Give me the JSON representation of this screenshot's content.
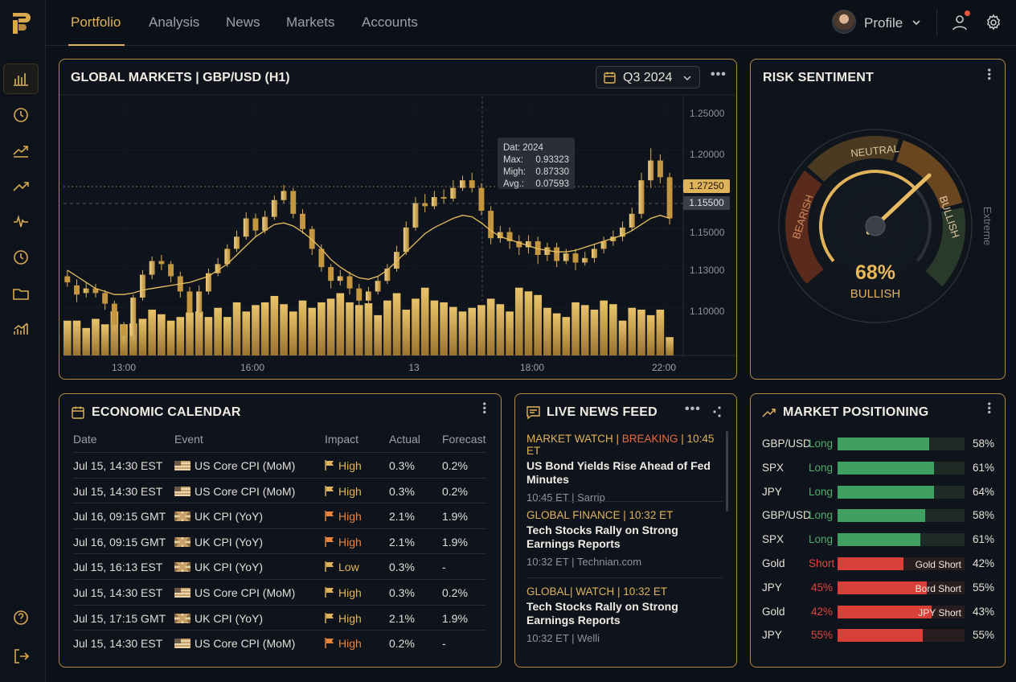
{
  "nav": {
    "tabs": [
      "Portfolio",
      "Analysis",
      "News",
      "Markets",
      "Accounts"
    ],
    "profile_label": "Profile"
  },
  "chart": {
    "title": "GLOBAL MARKETS | GBP/USD (H1)",
    "period": "Q3 2024",
    "tooltip": {
      "date": "Dat: 2024",
      "rows": [
        [
          "Max:",
          "0.93323"
        ],
        [
          "Migh:",
          "0.87330"
        ],
        [
          "Avg.:",
          "0.07593"
        ]
      ]
    },
    "price_tags": [
      "1.27250",
      "1.15500"
    ],
    "colors": {
      "gold": "#e0b35a",
      "bg": "#0f141c"
    }
  },
  "chart_data": {
    "type": "candlestick",
    "x_tick_labels": [
      "13:00",
      "16:00",
      "13",
      "18:00",
      "22:00"
    ],
    "y_tick_labels": [
      "1.25000",
      "1.20000",
      "1.15000",
      "1.13000",
      "1.10000"
    ],
    "ylim": [
      1.09,
      1.26
    ],
    "candles": [
      [
        1.142,
        1.138,
        1.146,
        1.135
      ],
      [
        1.136,
        1.13,
        1.14,
        1.125
      ],
      [
        1.131,
        1.134,
        1.138,
        1.128
      ],
      [
        1.134,
        1.131,
        1.137,
        1.128
      ],
      [
        1.131,
        1.124,
        1.133,
        1.12
      ],
      [
        1.124,
        1.11,
        1.126,
        1.106
      ],
      [
        1.11,
        1.103,
        1.112,
        1.098
      ],
      [
        1.103,
        1.128,
        1.13,
        1.1
      ],
      [
        1.128,
        1.143,
        1.146,
        1.126
      ],
      [
        1.143,
        1.152,
        1.155,
        1.14
      ],
      [
        1.152,
        1.15,
        1.156,
        1.146
      ],
      [
        1.15,
        1.142,
        1.152,
        1.138
      ],
      [
        1.142,
        1.132,
        1.145,
        1.128
      ],
      [
        1.132,
        1.118,
        1.135,
        1.115
      ],
      [
        1.118,
        1.132,
        1.136,
        1.116
      ],
      [
        1.132,
        1.144,
        1.147,
        1.13
      ],
      [
        1.144,
        1.15,
        1.154,
        1.142
      ],
      [
        1.15,
        1.16,
        1.163,
        1.148
      ],
      [
        1.16,
        1.168,
        1.172,
        1.158
      ],
      [
        1.168,
        1.18,
        1.184,
        1.166
      ],
      [
        1.18,
        1.172,
        1.183,
        1.168
      ],
      [
        1.172,
        1.181,
        1.185,
        1.17
      ],
      [
        1.181,
        1.192,
        1.195,
        1.179
      ],
      [
        1.192,
        1.198,
        1.202,
        1.19
      ],
      [
        1.198,
        1.183,
        1.2,
        1.18
      ],
      [
        1.183,
        1.173,
        1.186,
        1.17
      ],
      [
        1.173,
        1.16,
        1.175,
        1.156
      ],
      [
        1.16,
        1.148,
        1.163,
        1.145
      ],
      [
        1.148,
        1.139,
        1.15,
        1.134
      ],
      [
        1.139,
        1.142,
        1.146,
        1.136
      ],
      [
        1.142,
        1.134,
        1.145,
        1.13
      ],
      [
        1.134,
        1.126,
        1.137,
        1.12
      ],
      [
        1.126,
        1.132,
        1.135,
        1.123
      ],
      [
        1.132,
        1.139,
        1.142,
        1.13
      ],
      [
        1.139,
        1.147,
        1.15,
        1.137
      ],
      [
        1.147,
        1.158,
        1.162,
        1.145
      ],
      [
        1.158,
        1.174,
        1.178,
        1.156
      ],
      [
        1.174,
        1.19,
        1.194,
        1.172
      ],
      [
        1.19,
        1.188,
        1.196,
        1.184
      ],
      [
        1.188,
        1.194,
        1.198,
        1.186
      ],
      [
        1.194,
        1.193,
        1.199,
        1.19
      ],
      [
        1.193,
        1.2,
        1.205,
        1.191
      ],
      [
        1.2,
        1.205,
        1.208,
        1.198
      ],
      [
        1.205,
        1.2,
        1.21,
        1.197
      ],
      [
        1.2,
        1.185,
        1.203,
        1.182
      ],
      [
        1.185,
        1.167,
        1.188,
        1.163
      ],
      [
        1.167,
        1.171,
        1.175,
        1.164
      ],
      [
        1.171,
        1.165,
        1.174,
        1.16
      ],
      [
        1.165,
        1.161,
        1.169,
        1.156
      ],
      [
        1.161,
        1.165,
        1.169,
        1.157
      ],
      [
        1.165,
        1.156,
        1.168,
        1.15
      ],
      [
        1.156,
        1.161,
        1.164,
        1.152
      ],
      [
        1.161,
        1.152,
        1.164,
        1.148
      ],
      [
        1.152,
        1.157,
        1.16,
        1.15
      ],
      [
        1.157,
        1.151,
        1.16,
        1.146
      ],
      [
        1.151,
        1.154,
        1.158,
        1.149
      ],
      [
        1.154,
        1.16,
        1.163,
        1.151
      ],
      [
        1.16,
        1.165,
        1.168,
        1.157
      ],
      [
        1.165,
        1.168,
        1.172,
        1.162
      ],
      [
        1.168,
        1.174,
        1.178,
        1.165
      ],
      [
        1.174,
        1.183,
        1.187,
        1.172
      ],
      [
        1.183,
        1.205,
        1.21,
        1.18
      ],
      [
        1.205,
        1.218,
        1.226,
        1.2
      ],
      [
        1.218,
        1.207,
        1.222,
        1.203
      ],
      [
        1.207,
        1.18,
        1.21,
        1.176
      ]
    ],
    "volume": [
      0.38,
      0.38,
      0.3,
      0.4,
      0.34,
      0.48,
      0.34,
      0.35,
      0.4,
      0.5,
      0.45,
      0.38,
      0.42,
      0.47,
      0.48,
      0.42,
      0.52,
      0.42,
      0.58,
      0.48,
      0.55,
      0.58,
      0.65,
      0.56,
      0.48,
      0.6,
      0.52,
      0.58,
      0.62,
      0.68,
      0.58,
      0.55,
      0.57,
      0.44,
      0.6,
      0.68,
      0.5,
      0.62,
      0.74,
      0.6,
      0.58,
      0.53,
      0.48,
      0.52,
      0.55,
      0.62,
      0.56,
      0.48,
      0.74,
      0.7,
      0.66,
      0.52,
      0.46,
      0.42,
      0.58,
      0.55,
      0.5,
      0.6,
      0.56,
      0.38,
      0.52,
      0.5,
      0.44,
      0.5,
      0.2
    ],
    "ma": [
      1.146,
      1.142,
      1.138,
      1.134,
      1.132,
      1.13,
      1.13,
      1.131,
      1.133,
      1.134,
      1.135,
      1.136,
      1.137,
      1.138,
      1.14,
      1.142,
      1.146,
      1.15,
      1.156,
      1.162,
      1.168,
      1.172,
      1.176,
      1.177,
      1.175,
      1.171,
      1.166,
      1.16,
      1.153,
      1.148,
      1.144,
      1.141,
      1.14,
      1.142,
      1.146,
      1.152,
      1.158,
      1.164,
      1.17,
      1.174,
      1.177,
      1.18,
      1.182,
      1.181,
      1.177,
      1.172,
      1.168,
      1.166,
      1.164,
      1.162,
      1.16,
      1.159,
      1.158,
      1.158,
      1.159,
      1.161,
      1.163,
      1.165,
      1.167,
      1.169,
      1.172,
      1.176,
      1.18,
      1.182,
      1.18
    ]
  },
  "risk": {
    "title": "RISK SENTIMENT",
    "labels": {
      "bearish": "BEARISH",
      "neutral": "NEUTRAL",
      "bullish": "BULLISH",
      "extreme": "Extreme"
    },
    "value_pct": 68,
    "value_text": "68%",
    "sentiment": "BULLISH"
  },
  "calendar": {
    "title": "ECONOMIC CALENDAR",
    "headers": [
      "Date",
      "Event",
      "Impact",
      "Actual",
      "Forecast"
    ],
    "rows": [
      {
        "date": "Jul 15, 14:30 EST",
        "flag": "us",
        "event": "US Core CPI (MoM)",
        "impact": "High",
        "impact_color": "#e0b35a",
        "actual": "0.3%",
        "forecast": "0.2%"
      },
      {
        "date": "Jul 15, 14:30 EST",
        "flag": "us",
        "event": "US Core CPI (MoM)",
        "impact": "High",
        "impact_color": "#e0b35a",
        "actual": "0.3%",
        "forecast": "0.2%"
      },
      {
        "date": "Jul 16, 09:15 GMT",
        "flag": "uk",
        "event": "UK CPI (YoY)",
        "impact": "High",
        "impact_color": "#e8843b",
        "actual": "2.1%",
        "forecast": "1.9%"
      },
      {
        "date": "Jul 16, 09:15 GMT",
        "flag": "uk",
        "event": "UK CPI (YoY)",
        "impact": "High",
        "impact_color": "#e8843b",
        "actual": "2.1%",
        "forecast": "1.9%"
      },
      {
        "date": "Jul 15, 16:13 EST",
        "flag": "uk",
        "event": "UK CPI (YoY)",
        "impact": "Low",
        "impact_color": "#e0b35a",
        "actual": "0.3%",
        "forecast": "-"
      },
      {
        "date": "Jul 15, 14:30 EST",
        "flag": "us",
        "event": "US Core CPI (MoM)",
        "impact": "High",
        "impact_color": "#e0b35a",
        "actual": "0.3%",
        "forecast": "0.2%"
      },
      {
        "date": "Jul 15, 17:15 GMT",
        "flag": "uk",
        "event": "UK CPI (YoY)",
        "impact": "High",
        "impact_color": "#e0b35a",
        "actual": "2.1%",
        "forecast": "1.9%"
      },
      {
        "date": "Jul 15, 14:30 EST",
        "flag": "us",
        "event": "US Core CPI (MoM)",
        "impact": "High",
        "impact_color": "#e8843b",
        "actual": "0.2%",
        "forecast": "-"
      }
    ]
  },
  "news": {
    "title": "LIVE NEWS FEED",
    "items": [
      {
        "tag": "MARKET WATCH | ",
        "breaking": "BREAKING",
        "tag_end": " | 10:45 ET",
        "headline": "US Bond Yields Rise Ahead of Fed Minutes",
        "meta": "10:45 ET | Sarrip"
      },
      {
        "tag": "GLOBAL FINANCE | 10:32 ET",
        "breaking": "",
        "tag_end": "",
        "headline": "Tech Stocks Rally on Strong Earnings Reports",
        "meta": "10:32 ET | Technian.com"
      },
      {
        "tag": "GLOBAL| WATCH | 10:32 ET",
        "breaking": "",
        "tag_end": "",
        "headline": "Tech Stocks Rally on Strong Earnings Reports",
        "meta": "10:32 ET | Welli"
      }
    ]
  },
  "positioning": {
    "title": "MARKET POSITIONING",
    "rows": [
      {
        "asset": "GBP/USD",
        "side": "Long",
        "side_color": "#4caf6a",
        "fill": 0.72,
        "bar_color": "#3fa062",
        "bar_text": "",
        "pct": "58%"
      },
      {
        "asset": "SPX",
        "side": "Long",
        "side_color": "#4caf6a",
        "fill": 0.76,
        "bar_color": "#3fa062",
        "bar_text": "",
        "pct": "61%"
      },
      {
        "asset": "JPY",
        "side": "Long",
        "side_color": "#4caf6a",
        "fill": 0.76,
        "bar_color": "#3fa062",
        "bar_text": "",
        "pct": "64%"
      },
      {
        "asset": "GBP/USD",
        "side": "Long",
        "side_color": "#4caf6a",
        "fill": 0.69,
        "bar_color": "#3fa062",
        "bar_text": "",
        "pct": "58%"
      },
      {
        "asset": "SPX",
        "side": "Long",
        "side_color": "#4caf6a",
        "fill": 0.65,
        "bar_color": "#3fa062",
        "bar_text": "",
        "pct": "61%"
      },
      {
        "asset": "Gold",
        "side": "Short",
        "side_color": "#e0463c",
        "fill": 0.52,
        "bar_color": "#d94038",
        "bar_text": "Gold Short",
        "pct": "42%"
      },
      {
        "asset": "JPY",
        "side": "45%",
        "side_color": "#e0463c",
        "fill": 0.7,
        "bar_color": "#d94038",
        "bar_text": "Bord Short",
        "pct": "55%"
      },
      {
        "asset": "Gold",
        "side": "42%",
        "side_color": "#e0463c",
        "fill": 0.74,
        "bar_color": "#d94038",
        "bar_text": "JPY Short",
        "pct": "43%"
      },
      {
        "asset": "JPY",
        "side": "55%",
        "side_color": "#e0463c",
        "fill": 0.67,
        "bar_color": "#d94038",
        "bar_text": "",
        "pct": "55%"
      }
    ]
  }
}
